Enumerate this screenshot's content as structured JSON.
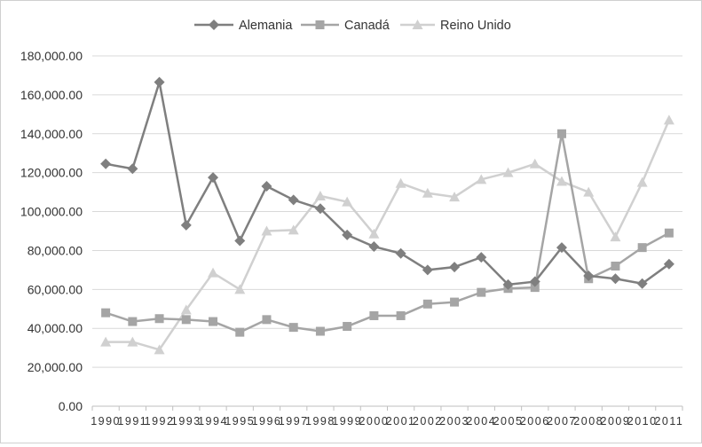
{
  "chart_data": {
    "type": "line",
    "x": [
      "1990",
      "1991",
      "1992",
      "1993",
      "1994",
      "1995",
      "1996",
      "1997",
      "1998",
      "1999",
      "2000",
      "2001",
      "2002",
      "2003",
      "2004",
      "2005",
      "2006",
      "2007",
      "2008",
      "2009",
      "2010",
      "2011"
    ],
    "ylim": [
      0,
      180000
    ],
    "yticks": [
      0,
      20000,
      40000,
      60000,
      80000,
      100000,
      120000,
      140000,
      160000,
      180000
    ],
    "ytick_labels": [
      "0.00",
      "20,000.00",
      "40,000.00",
      "60,000.00",
      "80,000.00",
      "100,000.00",
      "120,000.00",
      "140,000.00",
      "160,000.00",
      "180,000.00"
    ],
    "grid": "horizontal",
    "legend": "top-center",
    "series": [
      {
        "name": "Alemania",
        "color": "#7f7f7f",
        "marker": "diamond",
        "values": [
          124500,
          122000,
          166500,
          93000,
          117500,
          85000,
          113000,
          106000,
          101500,
          88000,
          82000,
          78500,
          70000,
          71500,
          76500,
          62500,
          64000,
          81500,
          67000,
          65500,
          63000,
          73000
        ]
      },
      {
        "name": "Canadá",
        "color": "#a5a5a5",
        "marker": "square",
        "values": [
          48000,
          43500,
          45000,
          44500,
          43500,
          38000,
          44500,
          40500,
          38500,
          41000,
          46500,
          46500,
          52500,
          53500,
          58500,
          60500,
          61000,
          140000,
          65500,
          72000,
          81500,
          89000
        ]
      },
      {
        "name": "Reino Unido",
        "color": "#d0d0d0",
        "marker": "triangle",
        "values": [
          33000,
          33000,
          29000,
          49500,
          68500,
          60000,
          90000,
          90500,
          108000,
          105000,
          88500,
          114500,
          109500,
          107500,
          116500,
          120000,
          124500,
          115500,
          110000,
          87000,
          115000,
          147000
        ]
      }
    ]
  }
}
